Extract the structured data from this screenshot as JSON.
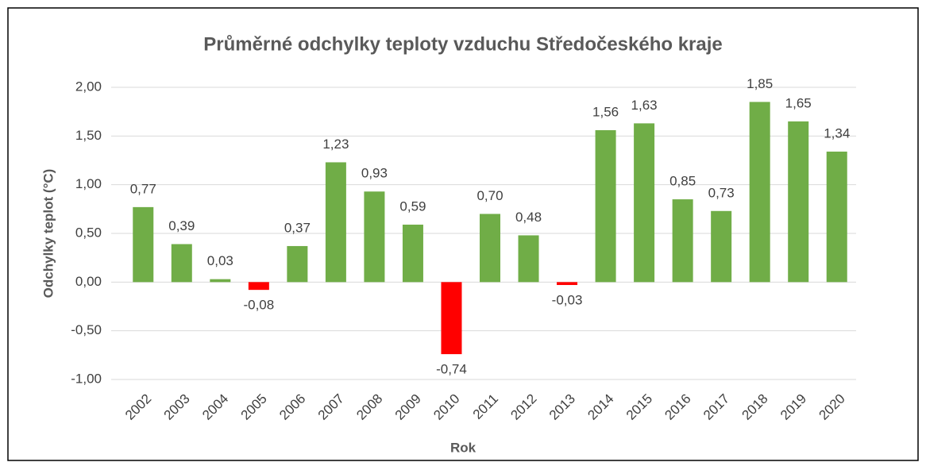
{
  "chart_data": {
    "type": "bar",
    "title": "Průměrné odchylky teploty vzduchu Středočeského kraje",
    "x_label": "Rok",
    "y_label": "Odchylky teplot (°C)",
    "categories": [
      "2002",
      "2003",
      "2004",
      "2005",
      "2006",
      "2007",
      "2008",
      "2009",
      "2010",
      "2011",
      "2012",
      "2013",
      "2014",
      "2015",
      "2016",
      "2017",
      "2018",
      "2019",
      "2020"
    ],
    "values": [
      0.77,
      0.39,
      0.03,
      -0.08,
      0.37,
      1.23,
      0.93,
      0.59,
      -0.74,
      0.7,
      0.48,
      -0.03,
      1.56,
      1.63,
      0.85,
      0.73,
      1.85,
      1.65,
      1.34
    ],
    "value_labels": [
      "0,77",
      "0,39",
      "0,03",
      "-0,08",
      "0,37",
      "1,23",
      "0,93",
      "0,59",
      "-0,74",
      "0,70",
      "0,48",
      "-0,03",
      "1,56",
      "1,63",
      "0,85",
      "0,73",
      "1,85",
      "1,65",
      "1,34"
    ],
    "color": "#70ad47",
    "negative_color": "#ff0000",
    "ylim": [
      -1,
      2
    ],
    "yticks": [
      {
        "value": -1,
        "label": "-1,00"
      },
      {
        "value": -0.5,
        "label": "-0,50"
      },
      {
        "value": 0,
        "label": "0,00"
      },
      {
        "value": 0.5,
        "label": "0,50"
      },
      {
        "value": 1,
        "label": "1,00"
      },
      {
        "value": 1.5,
        "label": "1,50"
      },
      {
        "value": 2,
        "label": "2,00"
      }
    ],
    "grid": true
  }
}
